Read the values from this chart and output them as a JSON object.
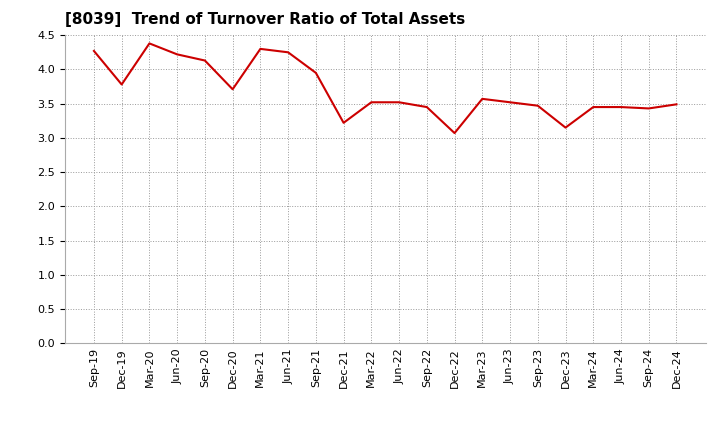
{
  "title": "[8039]  Trend of Turnover Ratio of Total Assets",
  "x_labels": [
    "Sep-19",
    "Dec-19",
    "Mar-20",
    "Jun-20",
    "Sep-20",
    "Dec-20",
    "Mar-21",
    "Jun-21",
    "Sep-21",
    "Dec-21",
    "Mar-22",
    "Jun-22",
    "Sep-22",
    "Dec-22",
    "Mar-23",
    "Jun-23",
    "Sep-23",
    "Dec-23",
    "Mar-24",
    "Jun-24",
    "Sep-24",
    "Dec-24"
  ],
  "y_values": [
    4.27,
    3.78,
    4.38,
    4.22,
    4.13,
    3.71,
    4.3,
    4.25,
    3.95,
    3.22,
    3.52,
    3.52,
    3.45,
    3.07,
    3.57,
    3.52,
    3.47,
    3.15,
    3.45,
    3.45,
    3.43,
    3.49
  ],
  "line_color": "#CC0000",
  "line_width": 1.5,
  "ylim": [
    0.0,
    4.5
  ],
  "yticks": [
    0.0,
    0.5,
    1.0,
    1.5,
    2.0,
    2.5,
    3.0,
    3.5,
    4.0,
    4.5
  ],
  "background_color": "#FFFFFF",
  "grid_color": "#999999",
  "title_fontsize": 11,
  "tick_fontsize": 8
}
